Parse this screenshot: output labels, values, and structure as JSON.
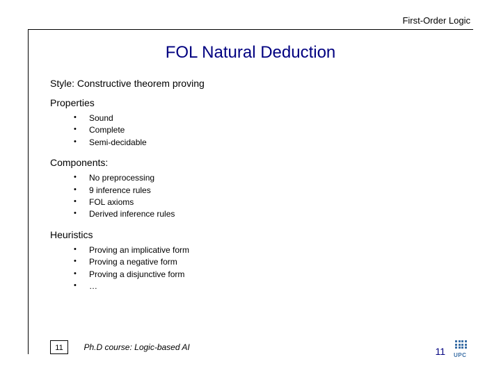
{
  "header": {
    "category": "First-Order Logic"
  },
  "title": "FOL Natural Deduction",
  "sections": [
    {
      "heading": "Style: Constructive theorem proving",
      "items": []
    },
    {
      "heading": "Properties",
      "items": [
        "Sound",
        "Complete",
        "Semi-decidable"
      ]
    },
    {
      "heading": "Components:",
      "items": [
        "No preprocessing",
        "9 inference rules",
        "FOL axioms",
        "Derived inference rules"
      ]
    },
    {
      "heading": "Heuristics",
      "items": [
        "Proving an implicative form",
        "Proving a negative form",
        "Proving a disjunctive form",
        "…"
      ]
    }
  ],
  "footer": {
    "page_box": "11",
    "course": "Ph.D course: Logic-based AI",
    "page_right": "11",
    "logo_label": "UPC"
  },
  "colors": {
    "title": "#000080",
    "text": "#000000",
    "rule": "#000000",
    "logo": "#3a6ea5",
    "background": "#ffffff"
  },
  "typography": {
    "title_fontsize": 24,
    "section_fontsize": 14,
    "bullet_fontsize": 12,
    "header_fontsize": 13,
    "footer_fontsize": 12
  }
}
